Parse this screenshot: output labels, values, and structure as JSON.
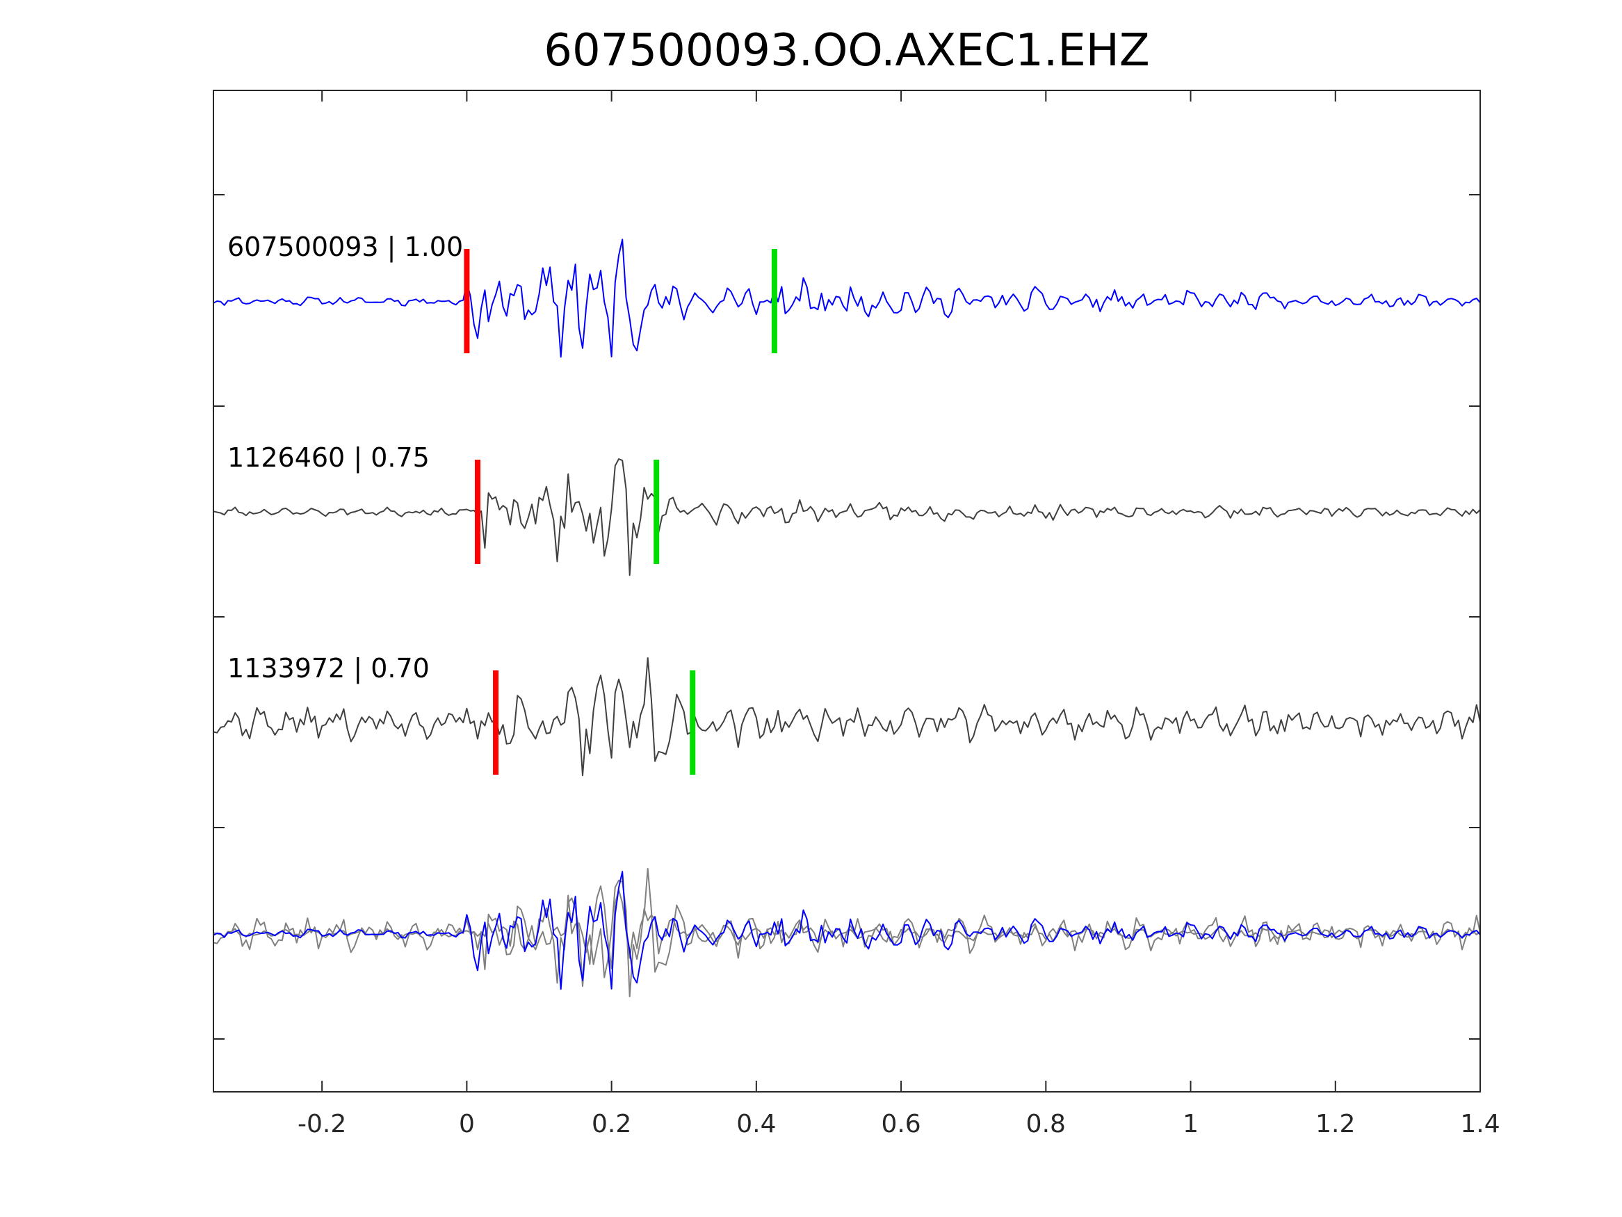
{
  "chart_data": {
    "type": "line",
    "title": "607500093.OO.AXEC1.EHZ",
    "xlabel": "",
    "ylabel": "",
    "xlim": [
      -0.35,
      1.4
    ],
    "xticks": [
      -0.2,
      0,
      0.2,
      0.4,
      0.6,
      0.8,
      1,
      1.2,
      1.4
    ],
    "xtick_labels": [
      "-0.2",
      "0",
      "0.2",
      "0.4",
      "0.6",
      "0.8",
      "1",
      "1.2",
      "1.4"
    ],
    "y_tick_labels_visible": false,
    "grid": false,
    "legend": "none",
    "traces": [
      {
        "label": "607500093 | 1.00",
        "event_id": "607500093",
        "correlation": 1.0,
        "color": "#0000ff",
        "p_pick_time": 0.0,
        "s_pick_time": 0.425,
        "peak_amplitude": 1.0,
        "seed": 11,
        "noise_level": 0.05,
        "coda_level": 0.22
      },
      {
        "label": "1126460 | 0.75",
        "event_id": "1126460",
        "correlation": 0.75,
        "color": "#404040",
        "p_pick_time": 0.015,
        "s_pick_time": 0.262,
        "peak_amplitude": 0.95,
        "seed": 23,
        "noise_level": 0.05,
        "coda_level": 0.14
      },
      {
        "label": "1133972 | 0.70",
        "event_id": "1133972",
        "correlation": 0.7,
        "color": "#404040",
        "p_pick_time": 0.04,
        "s_pick_time": 0.312,
        "peak_amplitude": 1.0,
        "seed": 37,
        "noise_level": 0.2,
        "coda_level": 0.25
      }
    ],
    "overlay": {
      "description_label": "",
      "series_colors": [
        "#0000ff",
        "#808080",
        "#808080"
      ]
    },
    "pick_colors": {
      "p": "#ff0000",
      "s": "#00dd00"
    }
  }
}
